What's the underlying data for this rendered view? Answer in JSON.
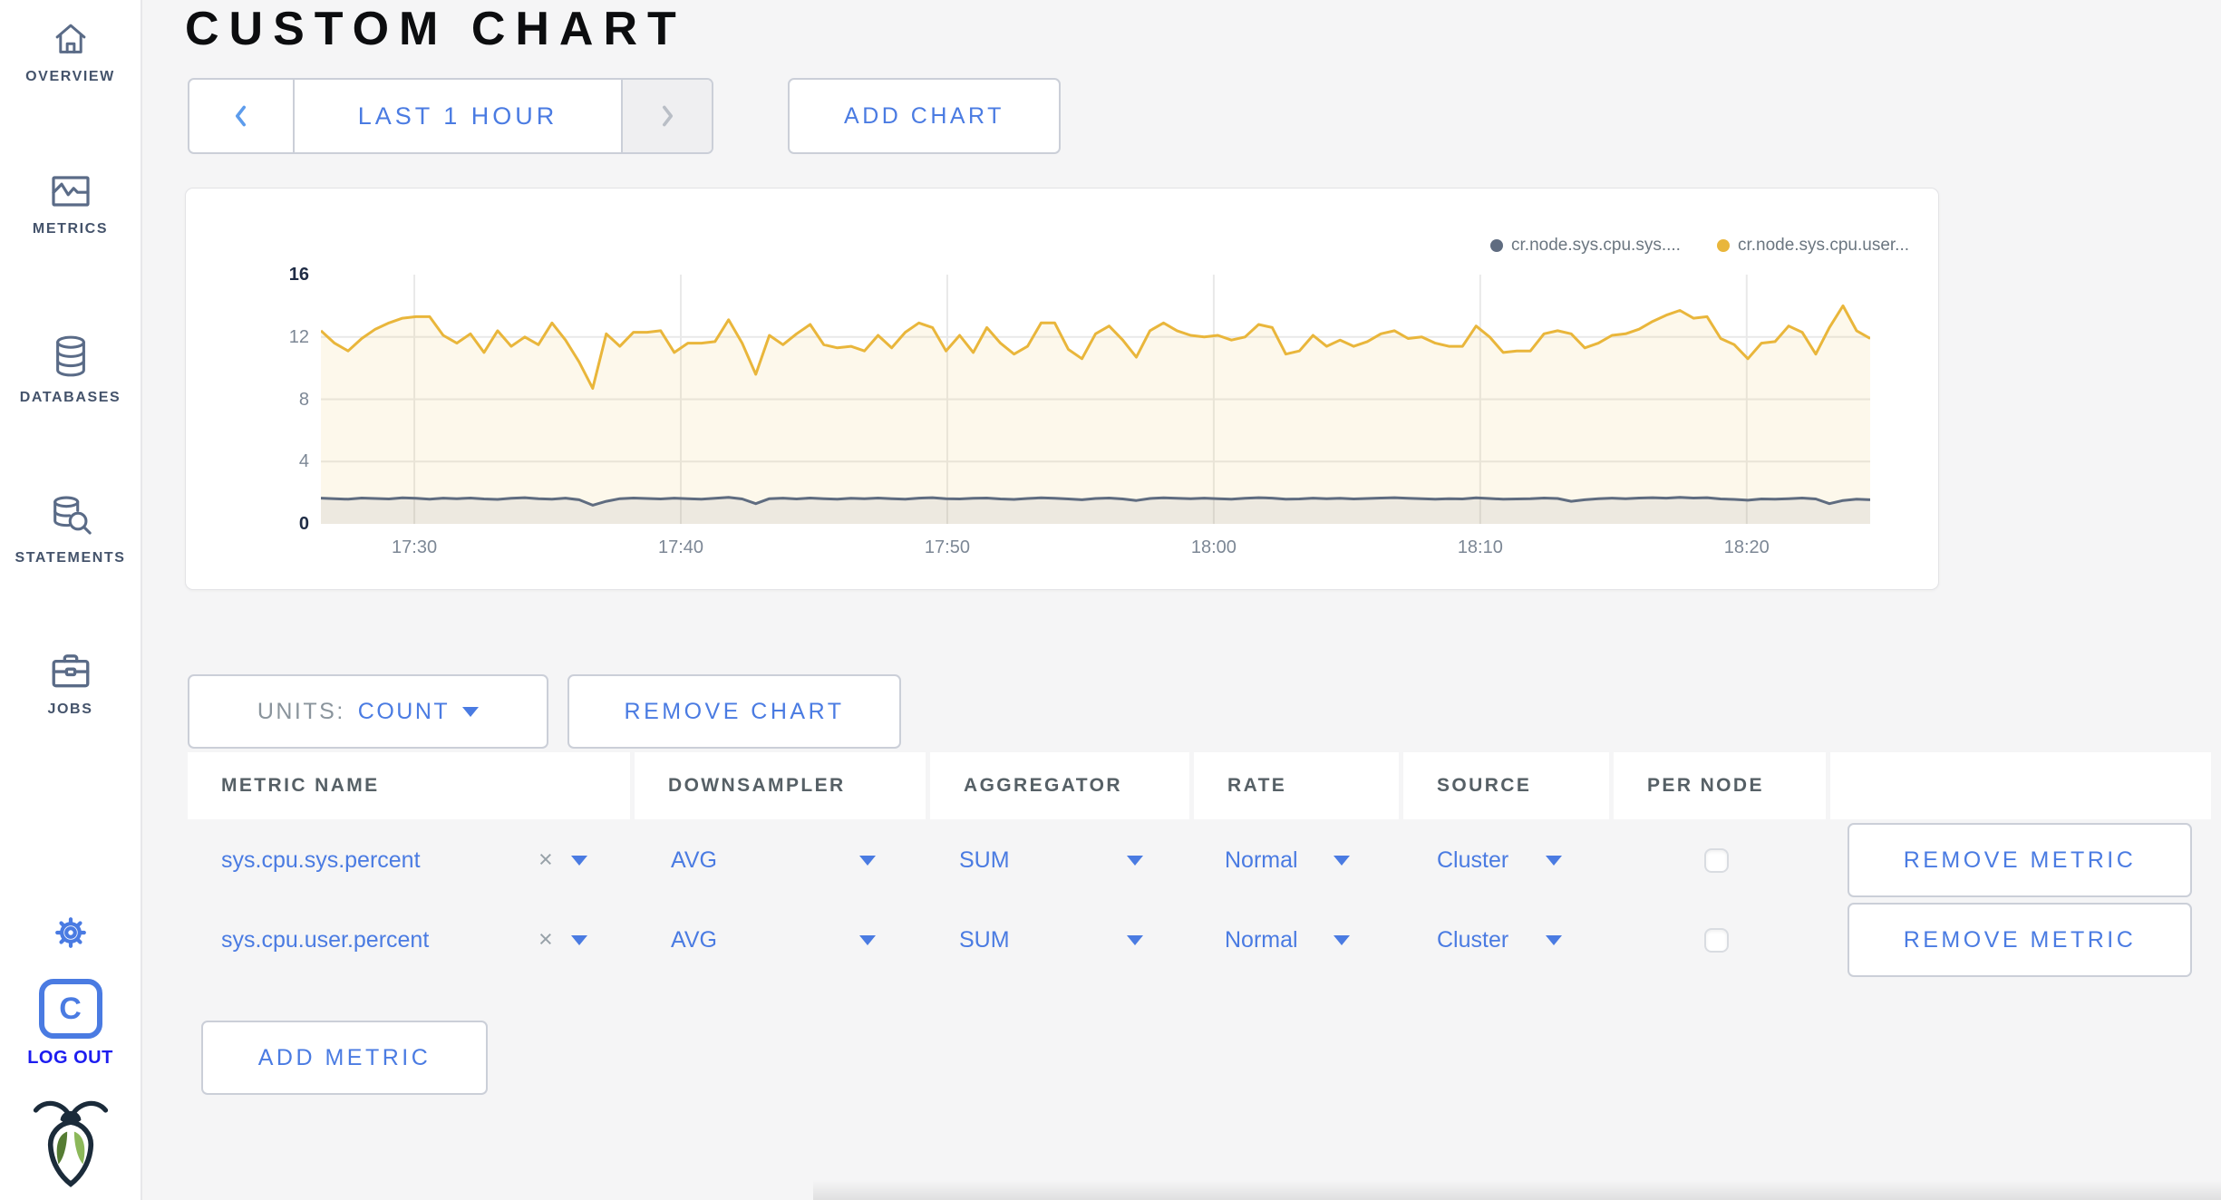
{
  "appearance": {
    "accent_blue": "#4a7be2",
    "logout_blue": "#1c1cef",
    "sidebar_icon_slate": "#5a6b87",
    "series_gray": "#5F6C80",
    "series_yellow": "#E9B63B",
    "gridline": "#e9e9e9"
  },
  "sidebar": {
    "items": [
      {
        "label": "OVERVIEW"
      },
      {
        "label": "METRICS"
      },
      {
        "label": "DATABASES"
      },
      {
        "label": "STATEMENTS"
      },
      {
        "label": "JOBS"
      }
    ],
    "logout_monogram": "C",
    "logout_label": "LOG OUT"
  },
  "page": {
    "title": "CUSTOM CHART"
  },
  "toolbar": {
    "time_range": "LAST 1 HOUR",
    "add_chart": "ADD CHART"
  },
  "chart_controls": {
    "units_label": "UNITS:",
    "units_value": "COUNT",
    "remove_chart": "REMOVE CHART",
    "add_metric": "ADD METRIC"
  },
  "chart_data": {
    "type": "line",
    "title": "",
    "xlabel": "",
    "ylabel": "",
    "ylim": [
      0,
      16
    ],
    "yticks": [
      16,
      12,
      8,
      4,
      0
    ],
    "gridlines": [
      12,
      8,
      4
    ],
    "grid": true,
    "legend_position": "top-right",
    "xticklabels": [
      "17:30",
      "17:40",
      "17:50",
      "18:00",
      "18:10",
      "18:20"
    ],
    "series": [
      {
        "name": "cr.node.sys.cpu.sys....",
        "color": "#5F6C80",
        "fill_opacity": 0.1,
        "values": [
          1.65,
          1.62,
          1.58,
          1.66,
          1.63,
          1.6,
          1.67,
          1.64,
          1.59,
          1.65,
          1.62,
          1.66,
          1.6,
          1.57,
          1.64,
          1.68,
          1.62,
          1.59,
          1.65,
          1.55,
          1.2,
          1.45,
          1.62,
          1.66,
          1.63,
          1.6,
          1.65,
          1.62,
          1.58,
          1.64,
          1.7,
          1.6,
          1.3,
          1.62,
          1.65,
          1.6,
          1.66,
          1.62,
          1.59,
          1.64,
          1.61,
          1.66,
          1.62,
          1.58,
          1.65,
          1.68,
          1.62,
          1.6,
          1.64,
          1.66,
          1.6,
          1.57,
          1.63,
          1.67,
          1.64,
          1.6,
          1.55,
          1.63,
          1.66,
          1.6,
          1.5,
          1.63,
          1.67,
          1.64,
          1.61,
          1.65,
          1.62,
          1.58,
          1.64,
          1.68,
          1.65,
          1.58,
          1.6,
          1.65,
          1.61,
          1.64,
          1.6,
          1.63,
          1.66,
          1.68,
          1.64,
          1.61,
          1.58,
          1.62,
          1.6,
          1.67,
          1.63,
          1.58,
          1.6,
          1.62,
          1.66,
          1.63,
          1.45,
          1.55,
          1.62,
          1.65,
          1.62,
          1.66,
          1.68,
          1.65,
          1.7,
          1.66,
          1.68,
          1.6,
          1.57,
          1.52,
          1.6,
          1.58,
          1.62,
          1.66,
          1.6,
          1.3,
          1.5,
          1.58,
          1.55
        ]
      },
      {
        "name": "cr.node.sys.cpu.user...",
        "color": "#E9B63B",
        "fill_opacity": 0.1,
        "values": [
          12.4,
          11.6,
          11.1,
          11.9,
          12.5,
          12.9,
          13.2,
          13.3,
          13.3,
          12.1,
          11.6,
          12.2,
          11.0,
          12.4,
          11.4,
          12.0,
          11.5,
          12.9,
          11.8,
          10.4,
          8.7,
          12.2,
          11.4,
          12.3,
          12.3,
          12.4,
          11.0,
          11.6,
          11.6,
          11.7,
          13.1,
          11.6,
          9.6,
          12.1,
          11.5,
          12.2,
          12.8,
          11.5,
          11.3,
          11.4,
          11.1,
          12.1,
          11.3,
          12.3,
          12.9,
          12.6,
          11.1,
          12.1,
          11.0,
          12.6,
          11.6,
          10.9,
          11.4,
          12.9,
          12.9,
          11.2,
          10.6,
          12.2,
          12.7,
          11.8,
          10.7,
          12.4,
          12.9,
          12.4,
          12.1,
          12.0,
          12.1,
          11.8,
          12.0,
          12.8,
          12.6,
          10.9,
          11.1,
          12.1,
          11.4,
          11.8,
          11.4,
          11.7,
          12.2,
          12.4,
          11.9,
          12.0,
          11.6,
          11.4,
          11.4,
          12.7,
          12.0,
          11.0,
          11.1,
          11.1,
          12.2,
          12.4,
          12.2,
          11.3,
          11.6,
          12.1,
          12.2,
          12.5,
          13.0,
          13.4,
          13.7,
          13.2,
          13.3,
          11.9,
          11.5,
          10.6,
          11.6,
          11.7,
          12.7,
          12.3,
          10.9,
          12.6,
          14.0,
          12.4,
          11.9
        ]
      }
    ]
  },
  "table": {
    "columns": [
      "METRIC NAME",
      "DOWNSAMPLER",
      "AGGREGATOR",
      "RATE",
      "SOURCE",
      "PER NODE",
      ""
    ],
    "rows": [
      {
        "metric": "sys.cpu.sys.percent",
        "remove_glyph": "×",
        "downsampler": "AVG",
        "aggregator": "SUM",
        "rate": "Normal",
        "source": "Cluster",
        "per_node_checked": false,
        "remove_label": "REMOVE METRIC"
      },
      {
        "metric": "sys.cpu.user.percent",
        "remove_glyph": "×",
        "downsampler": "AVG",
        "aggregator": "SUM",
        "rate": "Normal",
        "source": "Cluster",
        "per_node_checked": false,
        "remove_label": "REMOVE METRIC"
      }
    ]
  }
}
